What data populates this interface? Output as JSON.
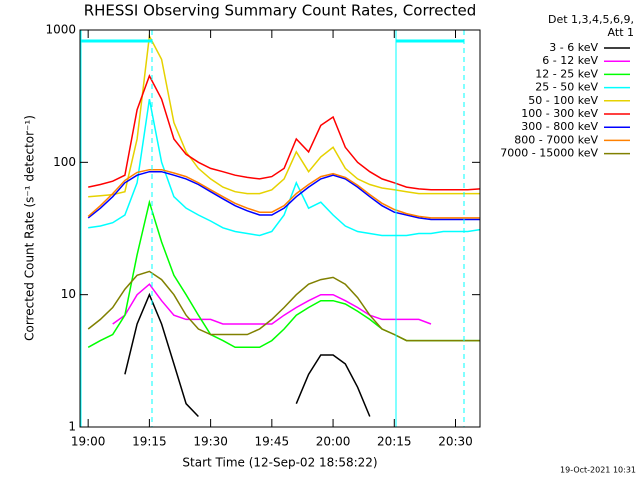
{
  "chart_data": {
    "type": "line",
    "title": "RHESSI Observing Summary Count Rates, Corrected",
    "x_label": "Start Time (12-Sep-02 18:58:22)",
    "y_label": "Corrected Count Rate (s⁻¹ detector⁻¹)",
    "legend_title": [
      "Det 1,3,4,5,6,9,",
      "Att 1"
    ],
    "timestamp": "19-Oct-2021 10:31",
    "log_y": true,
    "legend_position": "outside-right",
    "xlim": [
      "18:58",
      "20:36"
    ],
    "xticks": [
      "19:00",
      "19:15",
      "19:30",
      "19:45",
      "20:00",
      "20:15",
      "20:30"
    ],
    "ylim": [
      1,
      1000
    ],
    "yticks": [
      1,
      10,
      100,
      1000
    ],
    "x": [
      "19:00",
      "19:03",
      "19:06",
      "19:09",
      "19:12",
      "19:15",
      "19:18",
      "19:21",
      "19:24",
      "19:27",
      "19:30",
      "19:33",
      "19:36",
      "19:39",
      "19:42",
      "19:45",
      "19:48",
      "19:51",
      "19:54",
      "19:57",
      "20:00",
      "20:03",
      "20:06",
      "20:09",
      "20:12",
      "20:15",
      "20:18",
      "20:21",
      "20:24",
      "20:27",
      "20:30",
      "20:33",
      "20:36"
    ],
    "series": [
      {
        "name": "3 - 6 keV",
        "color": "#000000",
        "values": [
          null,
          null,
          null,
          2.5,
          6,
          10,
          6,
          3,
          1.5,
          1.2,
          null,
          null,
          null,
          null,
          null,
          null,
          null,
          1.5,
          2.5,
          3.5,
          3.5,
          3,
          2,
          1.2,
          null,
          null,
          null,
          null,
          null,
          null,
          null,
          null,
          null
        ]
      },
      {
        "name": "6 - 12 keV",
        "color": "#ff00ff",
        "values": [
          null,
          null,
          6,
          7,
          10,
          12,
          9,
          7,
          6.5,
          6.5,
          6.5,
          6,
          6,
          6,
          6,
          6,
          7,
          8,
          9,
          10,
          10,
          9,
          8,
          7,
          6.5,
          6.5,
          6.5,
          6.5,
          6,
          null,
          null,
          null,
          null
        ]
      },
      {
        "name": "12 - 25 keV",
        "color": "#00ff00",
        "values": [
          4,
          4.5,
          5,
          7,
          20,
          50,
          25,
          14,
          10,
          7,
          5,
          4.5,
          4,
          4,
          4,
          4.5,
          5.5,
          7,
          8,
          9,
          9,
          8.5,
          7.5,
          6.5,
          5.5,
          5,
          4.5,
          4.5,
          4.5,
          4.5,
          4.5,
          4.5,
          4.5
        ]
      },
      {
        "name": "25 - 50 keV",
        "color": "#00ffff",
        "values": [
          32,
          33,
          35,
          40,
          70,
          300,
          100,
          55,
          45,
          40,
          36,
          32,
          30,
          29,
          28,
          30,
          40,
          70,
          45,
          50,
          40,
          33,
          30,
          29,
          28,
          28,
          28,
          29,
          29,
          30,
          30,
          30,
          31
        ]
      },
      {
        "name": "50 - 100 keV",
        "color": "#e6d200",
        "values": [
          55,
          56,
          57,
          60,
          150,
          900,
          600,
          200,
          120,
          90,
          75,
          65,
          60,
          58,
          58,
          62,
          75,
          120,
          85,
          110,
          130,
          90,
          75,
          68,
          64,
          62,
          60,
          58,
          58,
          58,
          58,
          58,
          58
        ]
      },
      {
        "name": "100 - 300 keV",
        "color": "#ff0000",
        "values": [
          65,
          68,
          72,
          80,
          250,
          450,
          300,
          150,
          115,
          100,
          90,
          85,
          80,
          77,
          75,
          78,
          90,
          150,
          120,
          190,
          220,
          130,
          100,
          85,
          75,
          70,
          65,
          63,
          62,
          62,
          62,
          62,
          63
        ]
      },
      {
        "name": "300 - 800 keV",
        "color": "#0000ff",
        "values": [
          38,
          45,
          55,
          70,
          80,
          85,
          85,
          80,
          75,
          68,
          60,
          53,
          47,
          43,
          40,
          40,
          45,
          55,
          65,
          75,
          80,
          75,
          65,
          55,
          47,
          42,
          40,
          38,
          37,
          37,
          37,
          37,
          37
        ]
      },
      {
        "name": "800 - 7000 keV",
        "color": "#ff8000",
        "values": [
          39,
          47,
          58,
          73,
          84,
          88,
          88,
          83,
          78,
          70,
          62,
          55,
          49,
          45,
          42,
          42,
          47,
          58,
          68,
          78,
          82,
          77,
          67,
          57,
          49,
          44,
          41,
          39,
          38,
          38,
          38,
          38,
          38
        ]
      },
      {
        "name": "7000 - 15000 keV",
        "color": "#808000",
        "values": [
          5.5,
          6.5,
          8,
          11,
          14,
          15,
          13,
          10,
          7,
          5.5,
          5,
          5,
          5,
          5,
          5.5,
          6.5,
          8,
          10,
          12,
          13,
          13.5,
          12,
          9.5,
          7,
          5.5,
          5,
          4.5,
          4.5,
          4.5,
          4.5,
          4.5,
          4.5,
          4.5
        ]
      }
    ]
  }
}
